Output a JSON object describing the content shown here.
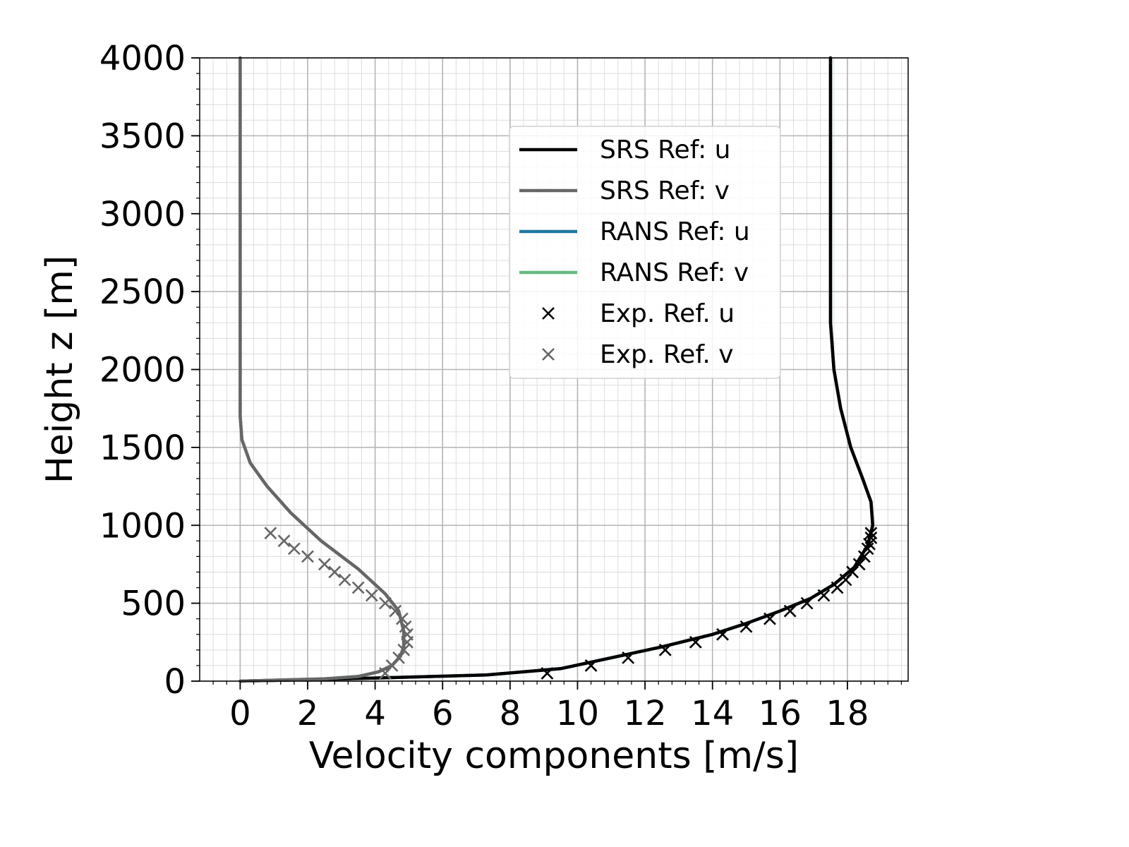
{
  "chart_data": {
    "type": "line",
    "title": "",
    "xlabel": "Velocity components [m/s]",
    "ylabel": "Height z [m]",
    "xlim": [
      -1.2,
      19.8
    ],
    "ylim": [
      0,
      4000
    ],
    "xticks": [
      0,
      2,
      4,
      6,
      8,
      10,
      12,
      14,
      16,
      18
    ],
    "yticks": [
      0,
      500,
      1000,
      1500,
      2000,
      2500,
      3000,
      3500,
      4000
    ],
    "grid": true,
    "minor_grid": true,
    "legend_position": "upper-center-right",
    "series": [
      {
        "name": "SRS Ref: u",
        "style": "line",
        "color": "#000000",
        "x": [
          0,
          4,
          7.3,
          9.5,
          11,
          12.5,
          14,
          15,
          16,
          16.9,
          17.6,
          18.2,
          18.6,
          18.75,
          18.7,
          18.45,
          18.1,
          17.8,
          17.6,
          17.5,
          17.5,
          17.5
        ],
        "y": [
          0,
          20,
          40,
          80,
          150,
          220,
          300,
          370,
          450,
          530,
          620,
          730,
          870,
          1000,
          1150,
          1300,
          1500,
          1750,
          2000,
          2300,
          3000,
          4000
        ]
      },
      {
        "name": "SRS Ref: v",
        "style": "line",
        "color": "#666666",
        "x": [
          0,
          2.5,
          3.5,
          4.1,
          4.5,
          4.75,
          4.85,
          4.85,
          4.7,
          4.3,
          3.5,
          2.4,
          1.5,
          0.8,
          0.3,
          0.05,
          0.0,
          0.0,
          0.0,
          0.0,
          0.0
        ],
        "y": [
          0,
          15,
          30,
          60,
          100,
          160,
          220,
          320,
          450,
          560,
          720,
          900,
          1080,
          1250,
          1400,
          1550,
          1700,
          2000,
          2300,
          3000,
          4000
        ]
      },
      {
        "name": "RANS Ref: u",
        "style": "line",
        "color": "#2078a0",
        "x": [
          0,
          4,
          7.3,
          9.5,
          11,
          12.5,
          14,
          15,
          16,
          16.9,
          17.6,
          18.2,
          18.6,
          18.75,
          18.7,
          18.45,
          18.1,
          17.8,
          17.6,
          17.5,
          17.5,
          17.5
        ],
        "y": [
          0,
          20,
          40,
          80,
          150,
          220,
          300,
          370,
          450,
          530,
          620,
          730,
          870,
          1000,
          1150,
          1300,
          1500,
          1750,
          2000,
          2300,
          3000,
          4000
        ]
      },
      {
        "name": "RANS Ref: v",
        "style": "line",
        "color": "#66bb80",
        "x": [
          0,
          2.5,
          3.5,
          4.1,
          4.5,
          4.75,
          4.85,
          4.85,
          4.7,
          4.3,
          3.5,
          2.4,
          1.5,
          0.8,
          0.3,
          0.05,
          0.0,
          0.0,
          0.0,
          0.0,
          0.0
        ],
        "y": [
          0,
          15,
          30,
          60,
          100,
          160,
          220,
          320,
          450,
          560,
          720,
          900,
          1080,
          1250,
          1400,
          1550,
          1700,
          2000,
          2300,
          3000,
          4000
        ]
      },
      {
        "name": "Exp. Ref. u",
        "style": "marker",
        "color": "#000000",
        "x": [
          9.1,
          10.4,
          11.5,
          12.6,
          13.5,
          14.3,
          15.0,
          15.7,
          16.3,
          16.8,
          17.3,
          17.7,
          17.95,
          18.15,
          18.35,
          18.5,
          18.6,
          18.65,
          18.7,
          18.7
        ],
        "y": [
          50,
          100,
          150,
          200,
          250,
          300,
          350,
          400,
          450,
          500,
          550,
          600,
          650,
          700,
          750,
          800,
          850,
          880,
          920,
          950
        ]
      },
      {
        "name": "Exp. Ref. v",
        "style": "marker",
        "color": "#666666",
        "x": [
          4.3,
          4.5,
          4.7,
          4.85,
          4.95,
          4.95,
          4.9,
          4.8,
          4.6,
          4.3,
          3.9,
          3.5,
          3.1,
          2.8,
          2.5,
          2.0,
          1.6,
          1.3,
          0.9
        ],
        "y": [
          50,
          100,
          150,
          200,
          250,
          300,
          350,
          400,
          450,
          500,
          550,
          600,
          650,
          700,
          750,
          800,
          850,
          900,
          950
        ]
      }
    ]
  }
}
